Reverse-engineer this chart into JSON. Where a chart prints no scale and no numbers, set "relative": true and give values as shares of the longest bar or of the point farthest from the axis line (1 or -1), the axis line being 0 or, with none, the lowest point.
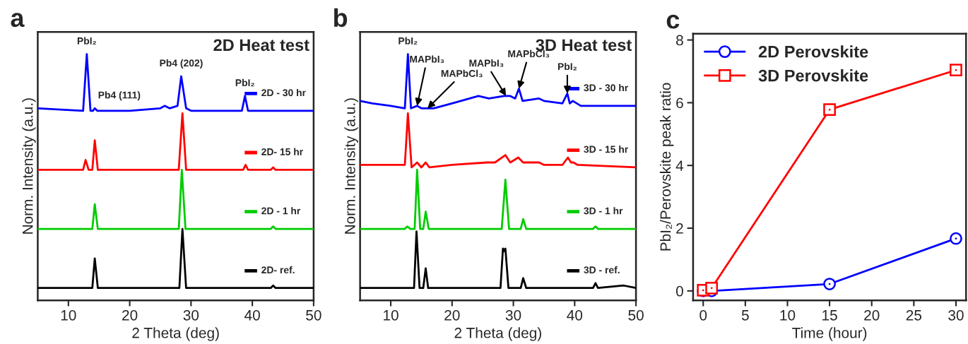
{
  "chart_data": [
    {
      "type": "line",
      "title": "a",
      "subtitle": "2D Heat test",
      "xlabel": "2 Theta (deg)",
      "ylabel": "Norm. Intensity (a.u.)",
      "relative": true,
      "xlim": [
        5,
        50
      ],
      "xticks": [
        10,
        20,
        30,
        40,
        50
      ],
      "tick_labels": "x",
      "legend": "right",
      "series": [
        {
          "name": "2D - 30 hr",
          "color": "#0000ff",
          "x": [
            5,
            12.4,
            13,
            13.6,
            14,
            14.3,
            14.7,
            20,
            25,
            25.7,
            26.5,
            27.8,
            28.4,
            29.2,
            30,
            35,
            38.3,
            38.8,
            39.3,
            45,
            50
          ],
          "values": [
            0.78,
            0.77,
            1.0,
            0.77,
            0.77,
            0.78,
            0.77,
            0.77,
            0.78,
            0.79,
            0.78,
            0.79,
            0.91,
            0.78,
            0.77,
            0.77,
            0.77,
            0.83,
            0.77,
            0.77,
            0.77
          ]
        },
        {
          "name": "2D- 15 hr",
          "color": "#ff0000",
          "x": [
            5,
            12.4,
            12.8,
            13.3,
            13.9,
            14.3,
            14.8,
            20,
            28,
            28.6,
            29.2,
            35,
            38.5,
            38.9,
            39.3,
            43,
            43.4,
            43.8,
            50
          ],
          "values": [
            0.53,
            0.53,
            0.57,
            0.53,
            0.53,
            0.65,
            0.53,
            0.53,
            0.53,
            0.76,
            0.53,
            0.53,
            0.53,
            0.55,
            0.53,
            0.53,
            0.54,
            0.53,
            0.53
          ]
        },
        {
          "name": "2D - 1 hr",
          "color": "#00cc00",
          "x": [
            5,
            13.9,
            14.3,
            14.8,
            28,
            28.5,
            29.1,
            43,
            43.4,
            43.8,
            50
          ],
          "values": [
            0.29,
            0.29,
            0.39,
            0.29,
            0.29,
            0.53,
            0.29,
            0.29,
            0.3,
            0.29,
            0.29
          ]
        },
        {
          "name": "2D- ref.",
          "color": "#000000",
          "x": [
            5,
            13.9,
            14.3,
            14.8,
            28.1,
            28.6,
            29.2,
            43,
            43.4,
            43.8,
            50
          ],
          "values": [
            0.05,
            0.05,
            0.17,
            0.05,
            0.05,
            0.29,
            0.05,
            0.05,
            0.06,
            0.05,
            0.05
          ]
        }
      ],
      "annotations": [
        {
          "text": "PbI₂",
          "x": 13,
          "y": 1.0
        },
        {
          "text": "Pb4 (111)",
          "x": 14.3,
          "y": 0.78
        },
        {
          "text": "Pb4 (202)",
          "x": 28.4,
          "y": 0.91
        },
        {
          "text": "PbI₂",
          "x": 38.8,
          "y": 0.83
        }
      ]
    },
    {
      "type": "line",
      "title": "b",
      "subtitle": "3D Heat test",
      "xlabel": "2 Theta (deg)",
      "ylabel": "Norm. Intensity (a.u.)",
      "relative": true,
      "xlim": [
        5,
        50
      ],
      "xticks": [
        10,
        20,
        30,
        40,
        50
      ],
      "tick_labels": "x",
      "legend": "right",
      "series": [
        {
          "name": "3D - 30 hr",
          "color": "#0000ff",
          "x": [
            5,
            7,
            10,
            12.3,
            12.8,
            13.3,
            14.3,
            15,
            17,
            20,
            24.3,
            26,
            28.5,
            29.5,
            30.3,
            30.9,
            31.5,
            34.2,
            35,
            38,
            38.8,
            39.2,
            39.7,
            41,
            50
          ],
          "values": [
            0.81,
            0.8,
            0.79,
            0.78,
            1.0,
            0.78,
            0.79,
            0.78,
            0.78,
            0.8,
            0.83,
            0.82,
            0.83,
            0.83,
            0.82,
            0.86,
            0.81,
            0.82,
            0.81,
            0.8,
            0.84,
            0.8,
            0.81,
            0.79,
            0.79
          ]
        },
        {
          "name": "3D - 15 hr",
          "color": "#ff0000",
          "x": [
            5,
            12.3,
            12.8,
            13.4,
            14.3,
            15,
            15.7,
            16.3,
            20,
            25.7,
            27,
            28.7,
            29.5,
            30.8,
            31.6,
            32.5,
            34.2,
            35,
            38,
            38.9,
            39.4,
            39.8,
            40.5,
            50
          ],
          "values": [
            0.55,
            0.55,
            0.76,
            0.54,
            0.56,
            0.54,
            0.56,
            0.54,
            0.55,
            0.56,
            0.56,
            0.59,
            0.56,
            0.58,
            0.56,
            0.56,
            0.56,
            0.55,
            0.55,
            0.58,
            0.56,
            0.56,
            0.55,
            0.54
          ]
        },
        {
          "name": "3D - 1 hr",
          "color": "#00cc00",
          "x": [
            5,
            12.3,
            12.7,
            13.2,
            13.9,
            14.3,
            14.8,
            15.3,
            15.7,
            16.2,
            28.1,
            28.7,
            29.3,
            31.2,
            31.6,
            32.1,
            43,
            43.4,
            43.8,
            48,
            50
          ],
          "values": [
            0.29,
            0.29,
            0.3,
            0.29,
            0.29,
            0.53,
            0.29,
            0.29,
            0.36,
            0.29,
            0.29,
            0.49,
            0.29,
            0.29,
            0.33,
            0.29,
            0.29,
            0.3,
            0.29,
            0.29,
            0.29
          ]
        },
        {
          "name": "3D - ref.",
          "color": "#000000",
          "x": [
            5,
            13.8,
            14.2,
            14.7,
            15.3,
            15.7,
            16.1,
            27.9,
            28.3,
            28.5,
            28.7,
            29.2,
            31.2,
            31.6,
            32.1,
            43,
            43.4,
            43.8,
            48,
            50
          ],
          "values": [
            0.05,
            0.05,
            0.28,
            0.05,
            0.05,
            0.13,
            0.05,
            0.05,
            0.21,
            0.2,
            0.21,
            0.05,
            0.05,
            0.09,
            0.05,
            0.05,
            0.07,
            0.05,
            0.06,
            0.05
          ]
        }
      ],
      "annotations": [
        {
          "text": "PbI₂",
          "x": 12.8,
          "y": 1.0
        },
        {
          "text": "MAPbI₃",
          "x": 14.3,
          "y": 0.79
        },
        {
          "text": "MAPbCl₃",
          "x": 16,
          "y": 0.78
        },
        {
          "text": "MAPbI₃",
          "x": 28.8,
          "y": 0.83
        },
        {
          "text": "MAPbCl₃",
          "x": 30.9,
          "y": 0.86
        },
        {
          "text": "PbI₂",
          "x": 38.8,
          "y": 0.84
        }
      ]
    },
    {
      "type": "line",
      "title": "c",
      "xlabel": "Time (hour)",
      "ylabel": "PbI₂/Perovskite peak ratio",
      "x": [
        0,
        1,
        15,
        30
      ],
      "xlim": [
        -1.2,
        31.2
      ],
      "xticks": [
        0,
        5,
        10,
        15,
        20,
        25,
        30
      ],
      "ylim": [
        -0.3,
        8.2
      ],
      "yticks": [
        0,
        2,
        4,
        6,
        8
      ],
      "legend": "top left",
      "series": [
        {
          "name": "2D Perovskite",
          "color": "#0000ff",
          "marker": "circle",
          "values": [
            0,
            0,
            0.22,
            1.67
          ]
        },
        {
          "name": "3D Perovskite",
          "color": "#ff0000",
          "marker": "square",
          "values": [
            0.02,
            0.09,
            5.78,
            7.04
          ]
        }
      ]
    }
  ]
}
